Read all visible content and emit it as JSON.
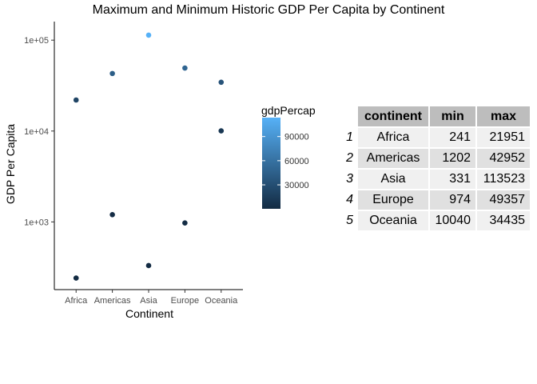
{
  "chart_data": {
    "type": "scatter",
    "title": "Maximum and Minimum Historic GDP Per Capita by Continent",
    "xlabel": "Continent",
    "ylabel": "GDP Per Capita",
    "y_scale": "log10",
    "ylim": [
      180,
      160000
    ],
    "categories": [
      "Africa",
      "Americas",
      "Asia",
      "Europe",
      "Oceania"
    ],
    "y_ticks": [
      1000,
      10000,
      100000
    ],
    "y_tick_labels": [
      "1e+03",
      "1e+04",
      "1e+05"
    ],
    "points": [
      {
        "x": "Africa",
        "y": 241
      },
      {
        "x": "Africa",
        "y": 21951
      },
      {
        "x": "Americas",
        "y": 1202
      },
      {
        "x": "Americas",
        "y": 42952
      },
      {
        "x": "Asia",
        "y": 331
      },
      {
        "x": "Asia",
        "y": 113523
      },
      {
        "x": "Europe",
        "y": 974
      },
      {
        "x": "Europe",
        "y": 49357
      },
      {
        "x": "Oceania",
        "y": 10040
      },
      {
        "x": "Oceania",
        "y": 34435
      }
    ],
    "legend": {
      "title": "gdpPercap",
      "placement": "right",
      "breaks": [
        30000,
        60000,
        90000
      ],
      "break_labels": [
        "30000",
        "60000",
        "90000"
      ],
      "color_low": "#132B43",
      "color_high": "#56B1F7"
    },
    "grid": false
  },
  "table": {
    "headers": [
      "continent",
      "min",
      "max"
    ],
    "rows": [
      {
        "n": "1",
        "continent": "Africa",
        "min": "241",
        "max": "21951"
      },
      {
        "n": "2",
        "continent": "Americas",
        "min": "1202",
        "max": "42952"
      },
      {
        "n": "3",
        "continent": "Asia",
        "min": "331",
        "max": "113523"
      },
      {
        "n": "4",
        "continent": "Europe",
        "min": "974",
        "max": "49357"
      },
      {
        "n": "5",
        "continent": "Oceania",
        "min": "10040",
        "max": "34435"
      }
    ]
  }
}
